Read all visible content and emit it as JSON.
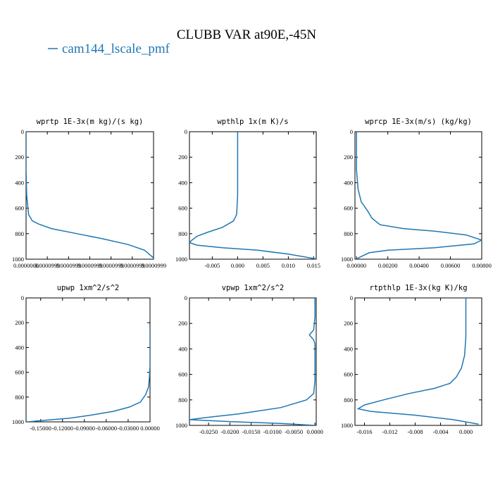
{
  "figure": {
    "title": "CLUBB VAR at90E,-45N",
    "legend_label": "cam144_lscale_pmf",
    "colors": {
      "line": "#1f77b4",
      "axes": "#000000",
      "background": "#ffffff"
    }
  },
  "chart_data": [
    {
      "type": "line",
      "title": "wprtp  1E-3x(m kg)/(s kg)",
      "xlim": [
        0,
        1
      ],
      "ylim": [
        1000,
        0
      ],
      "xticks": [
        0.0,
        0.1667,
        0.3333,
        0.5,
        0.6667,
        0.8333,
        1.0
      ],
      "xtick_labels": [
        "0.0000000",
        "0.0000999",
        "0.0000999",
        "0.0000999",
        "0.0000999",
        "0.0000999",
        "0.0000999"
      ],
      "yticks": [
        0,
        200,
        400,
        600,
        800,
        1000
      ],
      "ytick_labels": [
        "0",
        "200",
        "400",
        "600",
        "800",
        "1000"
      ],
      "series": [
        {
          "name": "cam144_lscale_pmf",
          "points": [
            [
              0,
              0
            ],
            [
              0,
              100
            ],
            [
              0,
              300
            ],
            [
              0.005,
              500
            ],
            [
              0.02,
              650
            ],
            [
              0.05,
              700
            ],
            [
              0.1,
              725
            ],
            [
              0.2,
              760
            ],
            [
              0.4,
              800
            ],
            [
              0.6,
              840
            ],
            [
              0.8,
              885
            ],
            [
              0.93,
              930
            ],
            [
              1.0,
              990
            ]
          ]
        }
      ]
    },
    {
      "type": "line",
      "title": "wpthlp  1x(m K)/s",
      "xlim": [
        -0.0095,
        0.0155
      ],
      "ylim": [
        1000,
        0
      ],
      "xticks": [
        -0.005,
        0.0,
        0.005,
        0.01,
        0.015
      ],
      "xtick_labels": [
        "-0.005",
        "0.000",
        "0.005",
        "0.010",
        "0.015"
      ],
      "yticks": [
        0,
        200,
        400,
        600,
        800,
        1000
      ],
      "ytick_labels": [
        "0",
        "200",
        "400",
        "600",
        "800",
        "1000"
      ],
      "series": [
        {
          "name": "cam144_lscale_pmf",
          "points": [
            [
              0,
              0
            ],
            [
              0,
              300
            ],
            [
              0,
              500
            ],
            [
              -0.0002,
              650
            ],
            [
              -0.0008,
              700
            ],
            [
              -0.003,
              750
            ],
            [
              -0.006,
              790
            ],
            [
              -0.008,
              820
            ],
            [
              -0.009,
              850
            ],
            [
              -0.0095,
              870
            ],
            [
              -0.008,
              890
            ],
            [
              -0.003,
              910
            ],
            [
              0.004,
              930
            ],
            [
              0.01,
              960
            ],
            [
              0.0155,
              998
            ]
          ]
        }
      ]
    },
    {
      "type": "line",
      "title": "wprcp  1E-3x(m/s) (kg/kg)",
      "xlim": [
        -0.0001,
        0.008
      ],
      "ylim": [
        1000,
        0
      ],
      "xticks": [
        0.0,
        0.002,
        0.004,
        0.006,
        0.008
      ],
      "xtick_labels": [
        "0.00000",
        "0.00200",
        "0.00400",
        "0.00600",
        "0.00800"
      ],
      "yticks": [
        0,
        200,
        400,
        600,
        800,
        1000
      ],
      "ytick_labels": [
        "0",
        "200",
        "400",
        "600",
        "800",
        "1000"
      ],
      "series": [
        {
          "name": "cam144_lscale_pmf",
          "points": [
            [
              0,
              0
            ],
            [
              0,
              300
            ],
            [
              0.0001,
              450
            ],
            [
              0.0003,
              550
            ],
            [
              0.0007,
              620
            ],
            [
              0.001,
              680
            ],
            [
              0.0015,
              730
            ],
            [
              0.003,
              760
            ],
            [
              0.005,
              780
            ],
            [
              0.007,
              810
            ],
            [
              0.008,
              850
            ],
            [
              0.0075,
              880
            ],
            [
              0.005,
              910
            ],
            [
              0.002,
              930
            ],
            [
              0.0008,
              950
            ],
            [
              0.0002,
              985
            ],
            [
              0.0,
              1000
            ]
          ]
        }
      ]
    },
    {
      "type": "line",
      "title": "upwp  1xm^2/s^2",
      "xlim": [
        -0.17,
        0.0
      ],
      "ylim": [
        1000,
        0
      ],
      "xticks": [
        -0.15,
        -0.12,
        -0.09,
        -0.06,
        -0.03,
        0.0
      ],
      "xtick_labels": [
        "-0.15000",
        "-0.12000",
        "-0.09000",
        "-0.06000",
        "-0.03000",
        "0.00000"
      ],
      "yticks": [
        0,
        200,
        400,
        600,
        800,
        1000
      ],
      "ytick_labels": [
        "0",
        "200",
        "400",
        "600",
        "800",
        "1000"
      ],
      "series": [
        {
          "name": "cam144_lscale_pmf",
          "points": [
            [
              0.0,
              240
            ],
            [
              0.0,
              400
            ],
            [
              0.0,
              550
            ],
            [
              -0.001,
              650
            ],
            [
              -0.002,
              720
            ],
            [
              -0.006,
              780
            ],
            [
              -0.013,
              840
            ],
            [
              -0.028,
              880
            ],
            [
              -0.05,
              915
            ],
            [
              -0.08,
              945
            ],
            [
              -0.11,
              970
            ],
            [
              -0.15,
              990
            ],
            [
              -0.168,
              1000
            ]
          ]
        }
      ]
    },
    {
      "type": "line",
      "title": "vpwp  1xm^2/s^2",
      "xlim": [
        -0.0295,
        0.0003
      ],
      "ylim": [
        1000,
        0
      ],
      "xticks": [
        -0.025,
        -0.02,
        -0.015,
        -0.01,
        -0.005,
        0.0
      ],
      "xtick_labels": [
        "-0.0250",
        "-0.0200",
        "-0.0150",
        "-0.0100",
        "-0.0050",
        "0.0000"
      ],
      "yticks": [
        0,
        200,
        400,
        600,
        800,
        1000
      ],
      "ytick_labels": [
        "0",
        "200",
        "400",
        "600",
        "800",
        "1000"
      ],
      "series": [
        {
          "name": "cam144_lscale_pmf",
          "points": [
            [
              0,
              0
            ],
            [
              0,
              150
            ],
            [
              -0.0003,
              250
            ],
            [
              -0.0013,
              290
            ],
            [
              -0.0003,
              330
            ],
            [
              0,
              360
            ],
            [
              0,
              500
            ],
            [
              0,
              650
            ],
            [
              -0.0003,
              750
            ],
            [
              -0.002,
              800
            ],
            [
              -0.008,
              860
            ],
            [
              -0.018,
              910
            ],
            [
              -0.026,
              940
            ],
            [
              -0.0295,
              955
            ],
            [
              -0.02,
              970
            ],
            [
              -0.008,
              985
            ],
            [
              0,
              1000
            ]
          ]
        }
      ]
    },
    {
      "type": "line",
      "title": "rtpthlp  1E-3x(kg K)/kg",
      "xlim": [
        -0.0175,
        0.0025
      ],
      "ylim": [
        1000,
        0
      ],
      "xticks": [
        -0.016,
        -0.012,
        -0.008,
        -0.004,
        0.0
      ],
      "xtick_labels": [
        "-0.016",
        "-0.012",
        "-0.008",
        "-0.004",
        "0.000"
      ],
      "yticks": [
        0,
        200,
        400,
        600,
        800,
        1000
      ],
      "ytick_labels": [
        "0",
        "200",
        "400",
        "600",
        "800",
        "1000"
      ],
      "series": [
        {
          "name": "cam144_lscale_pmf",
          "points": [
            [
              0,
              0
            ],
            [
              0,
              300
            ],
            [
              -0.0002,
              450
            ],
            [
              -0.0007,
              550
            ],
            [
              -0.0015,
              620
            ],
            [
              -0.0025,
              670
            ],
            [
              -0.005,
              710
            ],
            [
              -0.009,
              750
            ],
            [
              -0.013,
              800
            ],
            [
              -0.016,
              840
            ],
            [
              -0.017,
              870
            ],
            [
              -0.015,
              890
            ],
            [
              -0.008,
              920
            ],
            [
              -0.002,
              955
            ],
            [
              0.002,
              990
            ]
          ]
        }
      ]
    }
  ]
}
